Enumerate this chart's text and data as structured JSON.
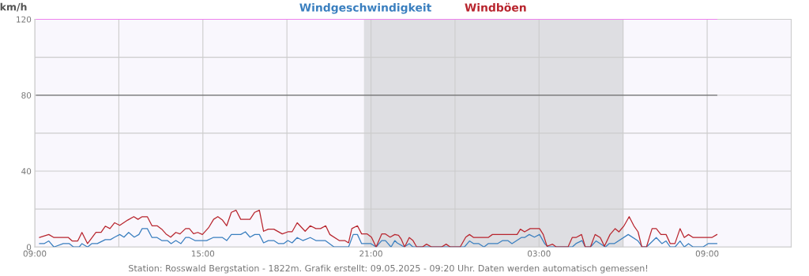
{
  "chart_data": {
    "type": "line",
    "ylabel": "km/h",
    "annotations": [
      "Station: Rosswald Bergstation - 1822m. Grafik erstellt: 09.05.2025 - 09:20 Uhr. Daten werden automatisch gemessen!"
    ],
    "xlim": [
      "2025-05-08T09:00",
      "2025-05-09T12:00"
    ],
    "ylim": [
      0,
      120
    ],
    "xticks": [
      {
        "value": "2025-05-08T09:00",
        "label": "09:00"
      },
      {
        "value": "2025-05-08T12:00",
        "label": null
      },
      {
        "value": "2025-05-08T15:00",
        "label": "15:00"
      },
      {
        "value": "2025-05-08T18:00",
        "label": null
      },
      {
        "value": "2025-05-08T21:00",
        "label": "21:00"
      },
      {
        "value": "2025-05-09T00:00",
        "label": null
      },
      {
        "value": "2025-05-09T03:00",
        "label": "03:00"
      },
      {
        "value": "2025-05-09T06:00",
        "label": null
      },
      {
        "value": "2025-05-09T09:00",
        "label": "09:00"
      }
    ],
    "yticks": [
      0,
      {
        "value": 20,
        "label": null
      },
      40,
      {
        "value": 60,
        "label": null
      },
      80,
      {
        "value": 100,
        "label": null
      },
      120
    ],
    "grid": true,
    "legend": "top",
    "bands": [
      {
        "axis": "x",
        "from": "2025-05-08T20:45",
        "to": "2025-05-09T06:00",
        "color": "#dedee2"
      }
    ],
    "ref_lines": [
      {
        "axis": "y",
        "value": 80,
        "color": "#555555"
      },
      {
        "axis": "y",
        "value": 120,
        "color": "#ee82ee"
      }
    ],
    "series": [
      {
        "name": "Windgeschwindigkeit",
        "color": "#3a7fbf",
        "x": [
          "2025-05-08T09:10",
          "2025-05-08T09:20",
          "2025-05-08T09:30",
          "2025-05-08T09:41",
          "2025-05-08T10:01",
          "2025-05-08T10:14",
          "2025-05-08T10:23",
          "2025-05-08T10:35",
          "2025-05-08T10:41",
          "2025-05-08T10:53",
          "2025-05-08T11:02",
          "2025-05-08T11:14",
          "2025-05-08T11:31",
          "2025-05-08T11:42",
          "2025-05-08T11:51",
          "2025-05-08T12:02",
          "2025-05-08T12:11",
          "2025-05-08T12:21",
          "2025-05-08T12:33",
          "2025-05-08T12:43",
          "2025-05-08T12:50",
          "2025-05-08T13:01",
          "2025-05-08T13:11",
          "2025-05-08T13:22",
          "2025-05-08T13:32",
          "2025-05-08T13:44",
          "2025-05-08T13:52",
          "2025-05-08T14:02",
          "2025-05-08T14:13",
          "2025-05-08T14:23",
          "2025-05-08T14:31",
          "2025-05-08T14:43",
          "2025-05-08T15:08",
          "2025-05-08T15:22",
          "2025-05-08T15:42",
          "2025-05-08T15:51",
          "2025-05-08T16:01",
          "2025-05-08T16:21",
          "2025-05-08T16:31",
          "2025-05-08T16:41",
          "2025-05-08T16:51",
          "2025-05-08T17:01",
          "2025-05-08T17:10",
          "2025-05-08T17:20",
          "2025-05-08T17:32",
          "2025-05-08T17:42",
          "2025-05-08T17:53",
          "2025-05-08T18:02",
          "2025-05-08T18:11",
          "2025-05-08T18:22",
          "2025-05-08T18:34",
          "2025-05-08T18:50",
          "2025-05-08T19:02",
          "2025-05-08T19:22",
          "2025-05-08T19:41",
          "2025-05-08T20:12",
          "2025-05-08T20:22",
          "2025-05-08T20:31",
          "2025-05-08T20:40",
          "2025-05-08T21:00",
          "2025-05-08T21:11",
          "2025-05-08T21:23",
          "2025-05-08T21:31",
          "2025-05-08T21:43",
          "2025-05-08T21:51",
          "2025-05-08T21:56",
          "2025-05-08T22:11",
          "2025-05-08T22:22",
          "2025-05-08T22:30",
          "2025-05-09T00:20",
          "2025-05-09T00:31",
          "2025-05-09T00:40",
          "2025-05-09T00:51",
          "2025-05-09T01:02",
          "2025-05-09T01:11",
          "2025-05-09T01:31",
          "2025-05-09T01:42",
          "2025-05-09T01:53",
          "2025-05-09T02:02",
          "2025-05-09T02:22",
          "2025-05-09T02:29",
          "2025-05-09T02:39",
          "2025-05-09T02:50",
          "2025-05-09T03:01",
          "2025-05-09T03:12",
          "2025-05-09T03:20",
          "2025-05-09T04:11",
          "2025-05-09T04:19",
          "2025-05-09T04:32",
          "2025-05-09T04:39",
          "2025-05-09T04:50",
          "2025-05-09T05:02",
          "2025-05-09T05:11",
          "2025-05-09T05:22",
          "2025-05-09T05:30",
          "2025-05-09T05:41",
          "2025-05-09T06:11",
          "2025-05-09T06:32",
          "2025-05-09T06:41",
          "2025-05-09T06:50",
          "2025-05-09T07:11",
          "2025-05-09T07:23",
          "2025-05-09T07:32",
          "2025-05-09T07:41",
          "2025-05-09T07:51",
          "2025-05-09T08:02",
          "2025-05-09T08:11",
          "2025-05-09T08:20",
          "2025-05-09T08:30",
          "2025-05-09T08:51",
          "2025-05-09T09:02",
          "2025-05-09T09:21"
        ],
        "values": [
          1.8,
          1.8,
          3.2,
          0,
          1.8,
          1.8,
          0,
          0,
          1.8,
          0,
          1.8,
          1.8,
          3.9,
          3.9,
          5.2,
          6.6,
          5.2,
          7.7,
          5.2,
          6.6,
          9.7,
          9.7,
          5.0,
          5.0,
          3.4,
          3.4,
          1.8,
          3.4,
          1.8,
          5.0,
          5.0,
          3.4,
          3.4,
          5.0,
          5.0,
          3.4,
          6.6,
          6.6,
          8.0,
          5.2,
          6.6,
          6.6,
          2.2,
          3.4,
          3.4,
          1.8,
          1.8,
          3.4,
          2.2,
          5.0,
          3.4,
          5.0,
          3.4,
          3.4,
          0,
          0,
          6.6,
          6.6,
          1.8,
          1.8,
          0,
          3.4,
          3.4,
          0,
          3.4,
          2.2,
          0,
          1.8,
          0,
          0,
          3.2,
          1.8,
          1.8,
          0,
          1.8,
          1.8,
          3.4,
          3.4,
          1.8,
          5.0,
          5.0,
          6.6,
          5.2,
          6.6,
          1.8,
          0,
          0,
          1.8,
          3.4,
          0,
          0,
          3.2,
          1.8,
          0,
          1.8,
          1.8,
          6.6,
          3.2,
          0,
          0,
          5.0,
          1.8,
          3.2,
          0,
          0,
          3.2,
          0,
          1.8,
          0,
          0,
          1.8,
          1.8
        ]
      },
      {
        "name": "Windböen",
        "color": "#b8252e",
        "x": [
          "2025-05-08T09:10",
          "2025-05-08T09:30",
          "2025-05-08T09:41",
          "2025-05-08T10:12",
          "2025-05-08T10:20",
          "2025-05-08T10:32",
          "2025-05-08T10:41",
          "2025-05-08T10:53",
          "2025-05-08T11:11",
          "2025-05-08T11:22",
          "2025-05-08T11:31",
          "2025-05-08T11:41",
          "2025-05-08T11:51",
          "2025-05-08T12:02",
          "2025-05-08T12:19",
          "2025-05-08T12:32",
          "2025-05-08T12:41",
          "2025-05-08T12:50",
          "2025-05-08T13:01",
          "2025-05-08T13:11",
          "2025-05-08T13:22",
          "2025-05-08T13:32",
          "2025-05-08T13:41",
          "2025-05-08T13:51",
          "2025-05-08T14:02",
          "2025-05-08T14:11",
          "2025-05-08T14:23",
          "2025-05-08T14:31",
          "2025-05-08T14:40",
          "2025-05-08T14:49",
          "2025-05-08T14:59",
          "2025-05-08T15:12",
          "2025-05-08T15:23",
          "2025-05-08T15:32",
          "2025-05-08T15:42",
          "2025-05-08T15:51",
          "2025-05-08T16:01",
          "2025-05-08T16:11",
          "2025-05-08T16:21",
          "2025-05-08T16:41",
          "2025-05-08T16:51",
          "2025-05-08T17:01",
          "2025-05-08T17:10",
          "2025-05-08T17:20",
          "2025-05-08T17:32",
          "2025-05-08T17:50",
          "2025-05-08T18:02",
          "2025-05-08T18:11",
          "2025-05-08T18:22",
          "2025-05-08T18:39",
          "2025-05-08T18:50",
          "2025-05-08T19:02",
          "2025-05-08T19:12",
          "2025-05-08T19:23",
          "2025-05-08T19:32",
          "2025-05-08T19:52",
          "2025-05-08T20:04",
          "2025-05-08T20:12",
          "2025-05-08T20:19",
          "2025-05-08T20:31",
          "2025-05-08T20:40",
          "2025-05-08T20:52",
          "2025-05-08T21:01",
          "2025-05-08T21:11",
          "2025-05-08T21:23",
          "2025-05-08T21:31",
          "2025-05-08T21:41",
          "2025-05-08T21:51",
          "2025-05-08T21:59",
          "2025-05-08T22:05",
          "2025-05-08T22:12",
          "2025-05-08T22:22",
          "2025-05-08T22:30",
          "2025-05-08T22:38",
          "2025-05-08T22:50",
          "2025-05-08T22:59",
          "2025-05-08T23:10",
          "2025-05-08T23:31",
          "2025-05-08T23:41",
          "2025-05-08T23:50",
          "2025-05-09T00:11",
          "2025-05-09T00:23",
          "2025-05-09T00:31",
          "2025-05-09T00:40",
          "2025-05-09T01:11",
          "2025-05-09T01:20",
          "2025-05-09T02:13",
          "2025-05-09T02:20",
          "2025-05-09T02:29",
          "2025-05-09T02:41",
          "2025-05-09T03:01",
          "2025-05-09T03:09",
          "2025-05-09T03:17",
          "2025-05-09T03:29",
          "2025-05-09T03:37",
          "2025-05-09T04:02",
          "2025-05-09T04:11",
          "2025-05-09T04:19",
          "2025-05-09T04:31",
          "2025-05-09T04:39",
          "2025-05-09T04:50",
          "2025-05-09T05:00",
          "2025-05-09T05:11",
          "2025-05-09T05:20",
          "2025-05-09T05:32",
          "2025-05-09T05:43",
          "2025-05-09T05:51",
          "2025-05-09T06:02",
          "2025-05-09T06:13",
          "2025-05-09T06:23",
          "2025-05-09T06:32",
          "2025-05-09T06:40",
          "2025-05-09T06:50",
          "2025-05-09T07:02",
          "2025-05-09T07:11",
          "2025-05-09T07:21",
          "2025-05-09T07:32",
          "2025-05-09T07:41",
          "2025-05-09T07:51",
          "2025-05-09T08:02",
          "2025-05-09T08:11",
          "2025-05-09T08:20",
          "2025-05-09T08:30",
          "2025-05-09T09:10",
          "2025-05-09T09:21"
        ],
        "values": [
          5.0,
          6.6,
          5.0,
          5.0,
          3.2,
          3.2,
          7.7,
          1.8,
          7.7,
          7.7,
          11.0,
          9.7,
          12.8,
          11.4,
          14.2,
          16.0,
          14.6,
          16.0,
          16.0,
          11.2,
          11.2,
          9.4,
          6.9,
          5.2,
          7.7,
          6.9,
          9.7,
          9.7,
          7.0,
          7.7,
          6.6,
          10.1,
          14.6,
          16.0,
          14.2,
          11.2,
          18.3,
          19.4,
          14.6,
          14.6,
          18.3,
          19.4,
          8.3,
          9.4,
          9.4,
          6.9,
          8.0,
          8.0,
          12.8,
          8.3,
          11.2,
          9.7,
          9.7,
          11.2,
          6.6,
          3.4,
          3.4,
          2.2,
          9.7,
          11.2,
          6.9,
          6.9,
          5.2,
          0,
          6.9,
          6.9,
          5.2,
          6.6,
          6.2,
          4.1,
          0,
          5.0,
          3.4,
          0,
          0,
          1.5,
          0,
          0,
          1.5,
          0,
          0,
          5.2,
          6.6,
          5.0,
          5.0,
          6.6,
          6.6,
          9.4,
          8.0,
          9.7,
          9.7,
          6.6,
          0.4,
          1.5,
          0,
          0,
          5.0,
          5.0,
          6.6,
          0,
          0,
          6.6,
          5.0,
          0.4,
          6.6,
          9.7,
          8.0,
          11.2,
          16.0,
          11.2,
          8.0,
          0,
          0,
          9.7,
          9.7,
          6.6,
          6.6,
          1.8,
          1.8,
          9.7,
          5.0,
          6.6,
          5.0,
          5.0,
          6.6
        ]
      }
    ]
  }
}
